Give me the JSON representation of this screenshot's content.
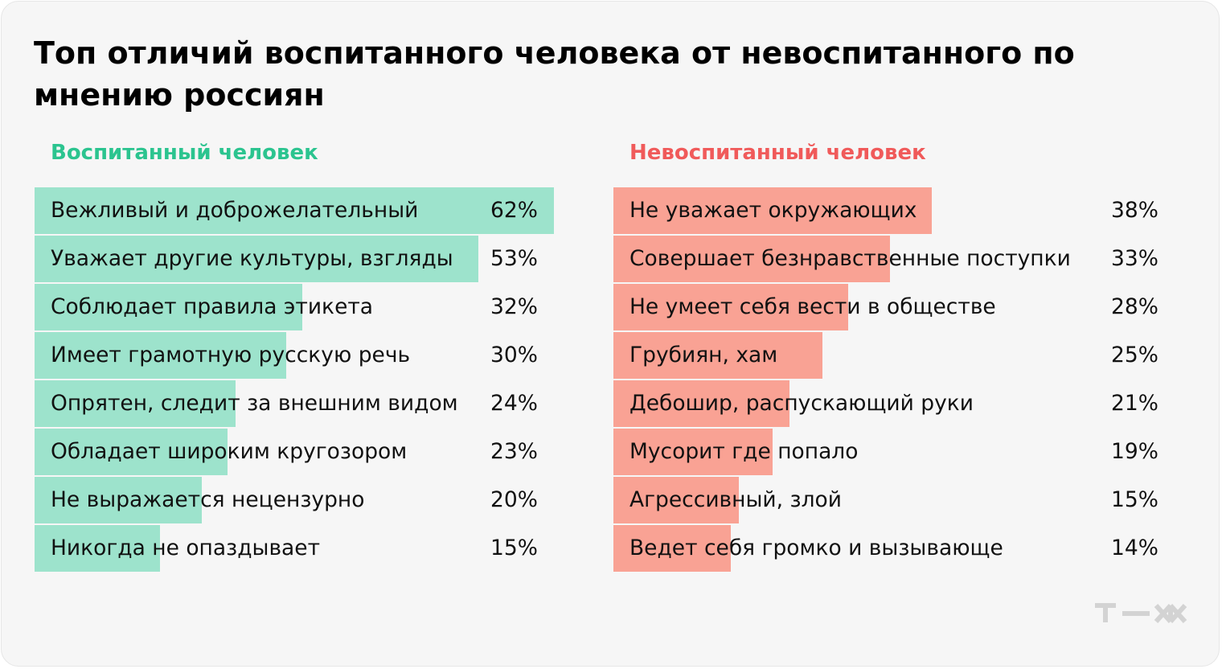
{
  "title": "Топ отличий воспитанного человека от невоспитанного по мнению россиян",
  "colors": {
    "left_accent": "#2bc48f",
    "left_bar": "#9de3cc",
    "right_accent": "#f05a5a",
    "right_bar": "#f9a294",
    "logo": "#d3d3d3"
  },
  "logo_icon": "tzh-logo",
  "chart_data": [
    {
      "type": "bar",
      "orientation": "horizontal",
      "title": "Воспитанный человек",
      "categories": [
        "Вежливый и доброжелательный",
        "Уважает другие культуры, взгляды",
        "Соблюдает правила этикета",
        "Имеет грамотную русскую речь",
        "Опрятен, следит за внешним видом",
        "Обладает широким кругозором",
        "Не выражается нецензурно",
        "Никогда не опаздывает"
      ],
      "values": [
        62,
        53,
        32,
        30,
        24,
        23,
        20,
        15
      ],
      "value_labels": [
        "62%",
        "53%",
        "32%",
        "30%",
        "24%",
        "23%",
        "20%",
        "15%"
      ],
      "unit": "%"
    },
    {
      "type": "bar",
      "orientation": "horizontal",
      "title": "Невоспитанный человек",
      "categories": [
        "Не уважает окружающих",
        "Совершает безнравственные поступки",
        "Не умеет себя вести в обществе",
        "Грубиян, хам",
        "Дебошир, распускающий руки",
        "Мусорит где попало",
        "Агрессивный, злой",
        "Ведет себя громко и вызывающе"
      ],
      "values": [
        38,
        33,
        28,
        25,
        21,
        19,
        15,
        14
      ],
      "value_labels": [
        "38%",
        "33%",
        "28%",
        "25%",
        "21%",
        "19%",
        "15%",
        "14%"
      ],
      "unit": "%"
    }
  ]
}
